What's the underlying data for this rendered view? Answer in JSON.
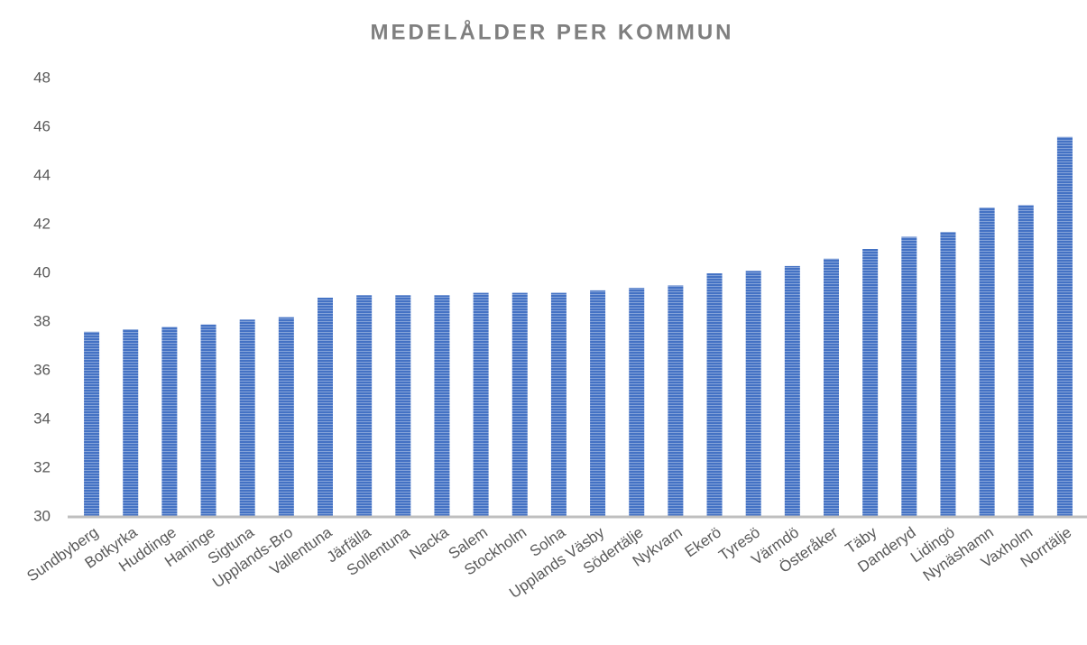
{
  "chart_data": {
    "type": "bar",
    "title": "MEDELÅLDER PER KOMMUN",
    "categories": [
      "Sundbyberg",
      "Botkyrka",
      "Huddinge",
      "Haninge",
      "Sigtuna",
      "Upplands-Bro",
      "Vallentuna",
      "Järfälla",
      "Sollentuna",
      "Nacka",
      "Salem",
      "Stockholm",
      "Solna",
      "Upplands Väsby",
      "Södertälje",
      "Nykvarn",
      "Ekerö",
      "Tyresö",
      "Värmdö",
      "Österåker",
      "Täby",
      "Danderyd",
      "Lidingö",
      "Nynäshamn",
      "Vaxholm",
      "Norrtälje"
    ],
    "values": [
      37.6,
      37.7,
      37.8,
      37.9,
      38.1,
      38.2,
      39.0,
      39.1,
      39.1,
      39.1,
      39.2,
      39.2,
      39.2,
      39.3,
      39.4,
      39.5,
      40.0,
      40.1,
      40.3,
      40.6,
      41.0,
      41.5,
      41.7,
      42.7,
      42.8,
      45.6
    ],
    "color": "#4472c4",
    "ylim": [
      30,
      48
    ],
    "yticks": [
      30,
      32,
      34,
      36,
      38,
      40,
      42,
      44,
      46,
      48
    ],
    "grid": false
  }
}
